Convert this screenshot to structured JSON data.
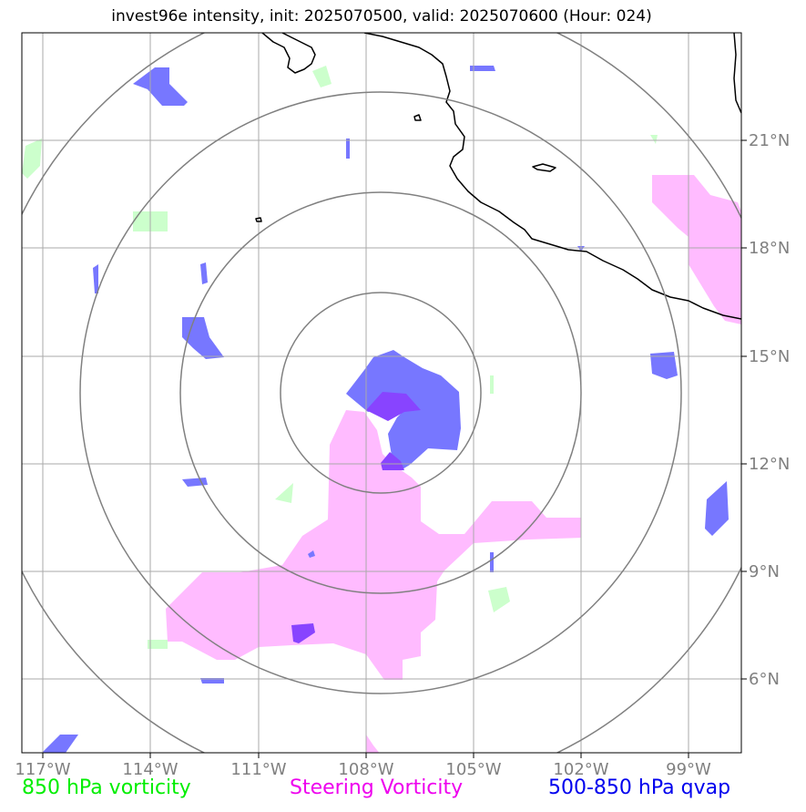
{
  "title": "invest96e intensity, init: 2025070500, valid: 2025070600 (Hour: 024)",
  "lon_labels": [
    "117°W",
    "114°W",
    "111°W",
    "108°W",
    "105°W",
    "102°W",
    "99°W"
  ],
  "lat_labels": [
    "21°N",
    "18°N",
    "15°N",
    "12°N",
    "9°N",
    "6°N"
  ],
  "legend": {
    "vort850": "850 hPa vorticity",
    "steering": "Steering Vorticity",
    "qvap": "500-850 hPa qvap"
  },
  "colors": {
    "vort850": "#ccffcc",
    "steering": "#ffbbff",
    "qvap": "#7777ff",
    "overlap": "#8844ff",
    "grid": "#aaaaaa",
    "range_rings": "#808080",
    "coastline": "#000000"
  }
}
